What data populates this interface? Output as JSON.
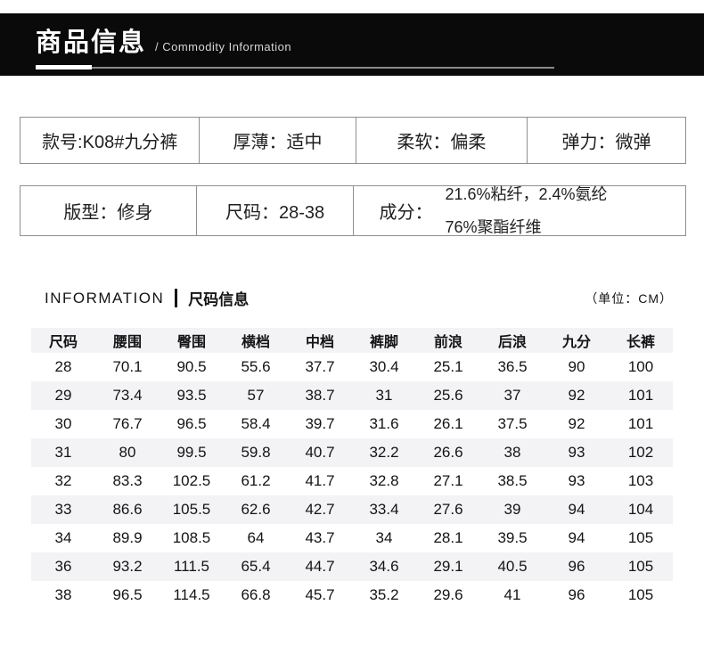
{
  "header": {
    "title": "商品信息",
    "subtitle": "/ Commodity Information"
  },
  "attributes": {
    "row1": [
      "款号:K08#九分裤",
      "厚薄：适中",
      "柔软：偏柔",
      "弹力：微弹"
    ],
    "row2": [
      "版型：修身",
      "尺码：28-38"
    ],
    "composition": {
      "label": "成分：",
      "lines": [
        "21.6%粘纤，2.4%氨纶",
        "76%聚酯纤维"
      ]
    }
  },
  "size_section": {
    "title_en": "INFORMATION",
    "title_cn": "尺码信息",
    "unit": "（单位：CM）"
  },
  "size_table": {
    "columns": [
      "尺码",
      "腰围",
      "臀围",
      "横档",
      "中档",
      "裤脚",
      "前浪",
      "后浪",
      "九分",
      "长裤"
    ],
    "rows": [
      [
        "28",
        "70.1",
        "90.5",
        "55.6",
        "37.7",
        "30.4",
        "25.1",
        "36.5",
        "90",
        "100"
      ],
      [
        "29",
        "73.4",
        "93.5",
        "57",
        "38.7",
        "31",
        "25.6",
        "37",
        "92",
        "101"
      ],
      [
        "30",
        "76.7",
        "96.5",
        "58.4",
        "39.7",
        "31.6",
        "26.1",
        "37.5",
        "92",
        "101"
      ],
      [
        "31",
        "80",
        "99.5",
        "59.8",
        "40.7",
        "32.2",
        "26.6",
        "38",
        "93",
        "102"
      ],
      [
        "32",
        "83.3",
        "102.5",
        "61.2",
        "41.7",
        "32.8",
        "27.1",
        "38.5",
        "93",
        "103"
      ],
      [
        "33",
        "86.6",
        "105.5",
        "62.6",
        "42.7",
        "33.4",
        "27.6",
        "39",
        "94",
        "104"
      ],
      [
        "34",
        "89.9",
        "108.5",
        "64",
        "43.7",
        "34",
        "28.1",
        "39.5",
        "94",
        "105"
      ],
      [
        "36",
        "93.2",
        "111.5",
        "65.4",
        "44.7",
        "34.6",
        "29.1",
        "40.5",
        "96",
        "105"
      ],
      [
        "38",
        "96.5",
        "114.5",
        "66.8",
        "45.7",
        "35.2",
        "29.6",
        "41",
        "96",
        "105"
      ]
    ],
    "alt_row_indexes": [
      1,
      3,
      5,
      7
    ]
  }
}
